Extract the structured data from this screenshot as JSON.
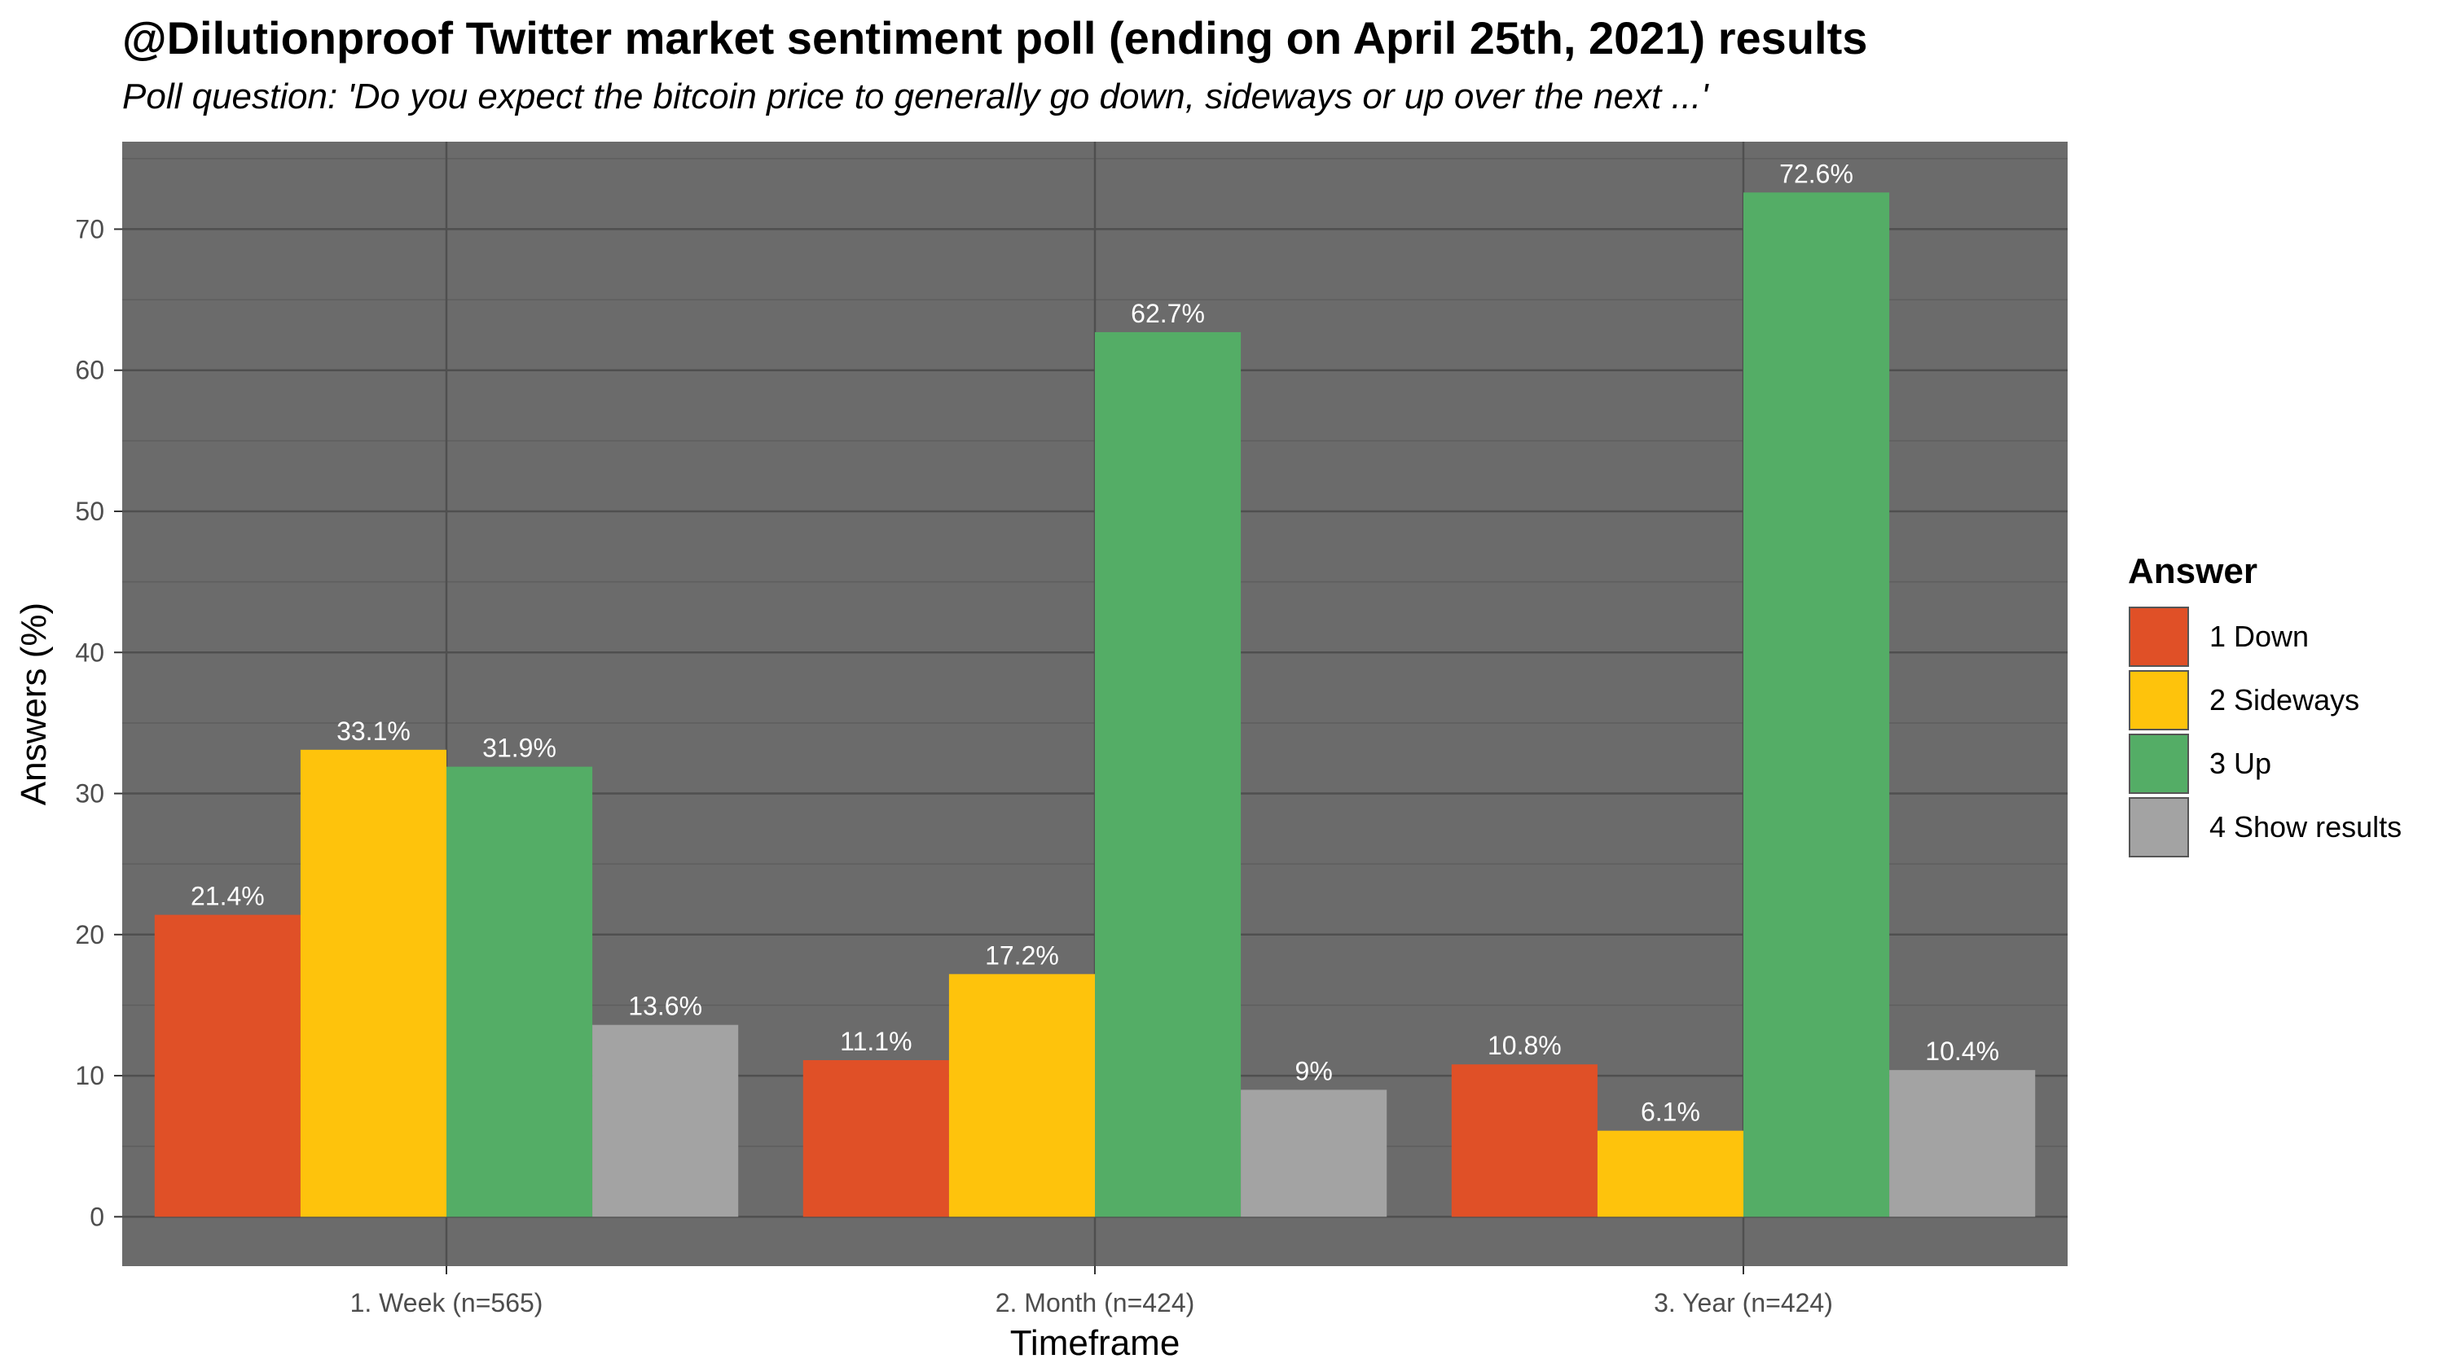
{
  "chart_data": {
    "type": "bar",
    "title": "@Dilutionproof Twitter market sentiment poll (ending on April 25th, 2021) results",
    "subtitle": "Poll question: 'Do you expect the bitcoin price to generally go down, sideways or up over the next ...'",
    "xlabel": "Timeframe",
    "ylabel": "Answers (%)",
    "ylim": [
      -3.5,
      76.2
    ],
    "yticks": [
      0,
      10,
      20,
      30,
      40,
      50,
      60,
      70
    ],
    "categories": [
      "1. Week (n=565)",
      "2. Month (n=424)",
      "3. Year (n=424)"
    ],
    "legend_title": "Answer",
    "legend_position": "right",
    "series": [
      {
        "name": "1 Down",
        "color": "#e05027",
        "values": [
          21.4,
          11.1,
          10.8
        ],
        "labels": [
          "21.4%",
          "11.1%",
          "10.8%"
        ]
      },
      {
        "name": "2 Sideways",
        "color": "#fec30c",
        "values": [
          33.1,
          17.2,
          6.1
        ],
        "labels": [
          "33.1%",
          "17.2%",
          "6.1%"
        ]
      },
      {
        "name": "3 Up",
        "color": "#54ad66",
        "values": [
          31.9,
          62.7,
          72.6
        ],
        "labels": [
          "31.9%",
          "62.7%",
          "72.6%"
        ]
      },
      {
        "name": "4 Show results",
        "color": "#a3a3a3",
        "values": [
          13.6,
          9,
          10.4
        ],
        "labels": [
          "13.6%",
          "9%",
          "10.4%"
        ]
      }
    ],
    "panel_background": "#6b6b6b"
  }
}
